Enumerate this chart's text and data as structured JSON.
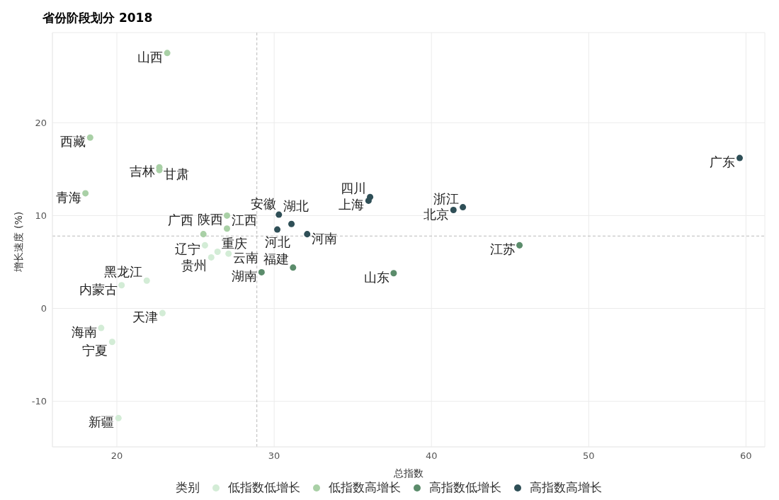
{
  "chart_data": {
    "type": "scatter",
    "title": "省份阶段划分 2018",
    "xlabel": "总指数",
    "ylabel": "增长速度 (%)",
    "legend_title": "类别",
    "legend": "bottom",
    "grid": true,
    "marker": "circle",
    "xlim": [
      15.9,
      61.2
    ],
    "xticks": [
      20,
      30,
      40,
      50,
      60
    ],
    "ylim": [
      -14.9,
      29.7
    ],
    "yticks": [
      -10,
      0,
      10,
      20
    ],
    "ref_lines": [
      {
        "axis": "x",
        "value": 28.9,
        "line_style": "dashed",
        "color": "#bbbbbb"
      },
      {
        "axis": "y",
        "value": 7.8,
        "line_style": "dashed",
        "color": "#bbbbbb"
      }
    ],
    "series": [
      {
        "name": "低指数低增长",
        "color": "#d3ecd6",
        "x": [
          25.6,
          26.4,
          27.1,
          26.0,
          21.9,
          20.3,
          22.9,
          19.0,
          19.7,
          20.1
        ],
        "values": [
          6.8,
          6.1,
          5.9,
          5.5,
          3.0,
          2.5,
          -0.5,
          -2.1,
          -3.6,
          -11.8
        ]
      },
      {
        "name": "低指数高增长",
        "color": "#a9d0a6",
        "x": [
          23.2,
          18.3,
          22.7,
          22.7,
          18.0,
          27.0,
          27.0,
          25.5
        ],
        "values": [
          27.5,
          18.4,
          15.2,
          14.9,
          12.4,
          10.0,
          8.6,
          8.0
        ]
      },
      {
        "name": "高指数低增长",
        "color": "#5b8c6b",
        "x": [
          29.2,
          31.2,
          45.6,
          37.6
        ],
        "values": [
          3.9,
          4.4,
          6.8,
          3.8
        ]
      },
      {
        "name": "高指数高增长",
        "color": "#2f4f57",
        "x": [
          30.3,
          31.1,
          30.2,
          32.1,
          36.1,
          36.0,
          41.4,
          42.0,
          59.6
        ],
        "values": [
          10.1,
          9.1,
          8.5,
          8.0,
          12.0,
          11.6,
          10.6,
          10.9,
          16.2
        ]
      }
    ],
    "annotations": [
      {
        "text": "辽宁",
        "x": 25.6,
        "y": 6.8
      },
      {
        "text": "重庆",
        "x": 26.4,
        "y": 6.1
      },
      {
        "text": "云南",
        "x": 27.1,
        "y": 5.9
      },
      {
        "text": "贵州",
        "x": 26.0,
        "y": 5.5
      },
      {
        "text": "黑龙江",
        "x": 21.9,
        "y": 3.0
      },
      {
        "text": "内蒙古",
        "x": 20.3,
        "y": 2.5
      },
      {
        "text": "天津",
        "x": 22.9,
        "y": -0.5
      },
      {
        "text": "海南",
        "x": 19.0,
        "y": -2.1
      },
      {
        "text": "宁夏",
        "x": 19.7,
        "y": -3.6
      },
      {
        "text": "新疆",
        "x": 20.1,
        "y": -11.8
      },
      {
        "text": "山西",
        "x": 23.2,
        "y": 27.5
      },
      {
        "text": "西藏",
        "x": 18.3,
        "y": 18.4
      },
      {
        "text": "吉林",
        "x": 22.7,
        "y": 15.2
      },
      {
        "text": "甘肃",
        "x": 22.7,
        "y": 14.9
      },
      {
        "text": "青海",
        "x": 18.0,
        "y": 12.4
      },
      {
        "text": "陕西",
        "x": 27.0,
        "y": 10.0
      },
      {
        "text": "江西",
        "x": 27.0,
        "y": 8.6
      },
      {
        "text": "广西",
        "x": 25.5,
        "y": 8.0
      },
      {
        "text": "湖南",
        "x": 29.2,
        "y": 3.9
      },
      {
        "text": "福建",
        "x": 31.2,
        "y": 4.4
      },
      {
        "text": "江苏",
        "x": 45.6,
        "y": 6.8
      },
      {
        "text": "山东",
        "x": 37.6,
        "y": 3.8
      },
      {
        "text": "湖北",
        "x": 30.3,
        "y": 10.1
      },
      {
        "text": "安徽",
        "x": 31.1,
        "y": 9.1
      },
      {
        "text": "河北",
        "x": 30.2,
        "y": 8.5
      },
      {
        "text": "河南",
        "x": 32.1,
        "y": 8.0
      },
      {
        "text": "四川",
        "x": 36.1,
        "y": 12.0
      },
      {
        "text": "上海",
        "x": 36.0,
        "y": 11.6
      },
      {
        "text": "北京",
        "x": 41.4,
        "y": 10.6
      },
      {
        "text": "浙江",
        "x": 42.0,
        "y": 10.9
      },
      {
        "text": "广东",
        "x": 59.6,
        "y": 16.2
      }
    ]
  }
}
